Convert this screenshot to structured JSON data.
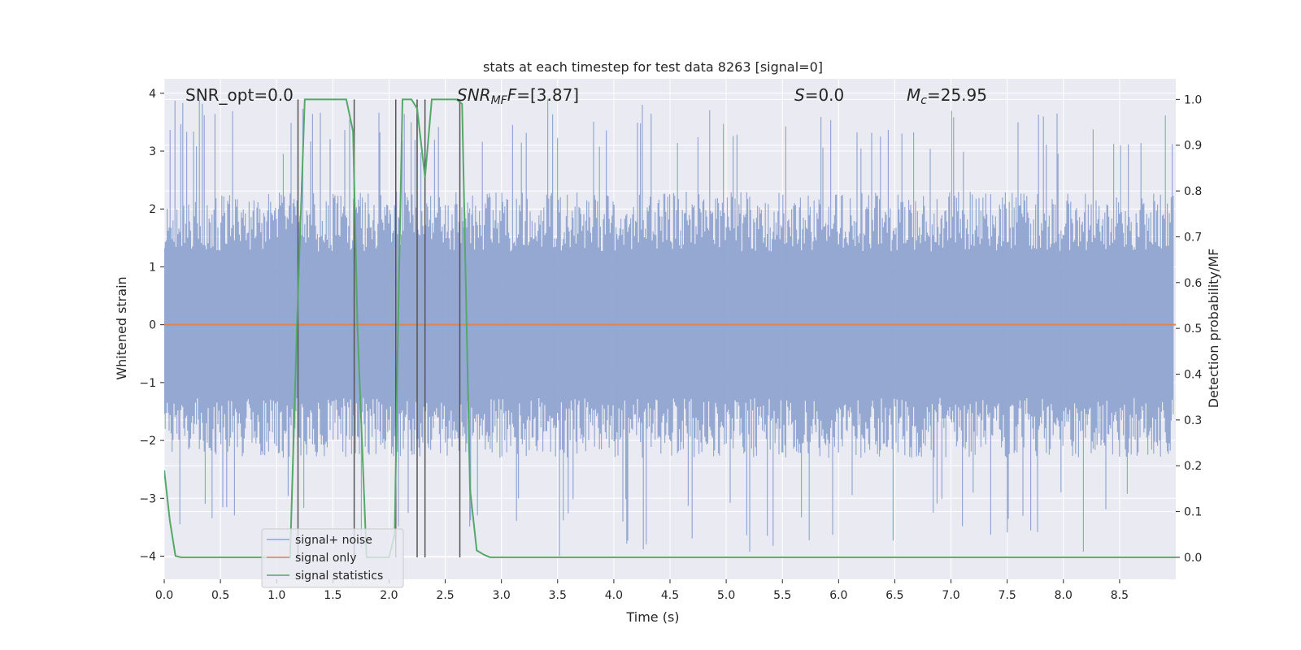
{
  "chart_data": {
    "type": "line",
    "title": "stats at each timestep for test data 8263 [signal=0]",
    "xlabel": "Time (s)",
    "ylabel": "Whitened strain",
    "y2label": "Detection probability/MF",
    "xlim": [
      0.0,
      9.0
    ],
    "ylim": [
      -4.4,
      4.25
    ],
    "y2lim": [
      -0.048,
      1.045
    ],
    "xticks": [
      "0.0",
      "0.5",
      "1.0",
      "1.5",
      "2.0",
      "2.5",
      "3.0",
      "3.5",
      "4.0",
      "4.5",
      "5.0",
      "5.5",
      "6.0",
      "6.5",
      "7.0",
      "7.5",
      "8.0",
      "8.5"
    ],
    "yticks": [
      "4",
      "3",
      "2",
      "1",
      "0",
      "−1",
      "−2",
      "−3",
      "−4"
    ],
    "y2ticks": [
      "1.0",
      "0.9",
      "0.8",
      "0.7",
      "0.6",
      "0.5",
      "0.4",
      "0.3",
      "0.2",
      "0.1",
      "0.0"
    ],
    "grid": true,
    "legend_position": "lower-left",
    "annotations": {
      "snr_opt": "SNR_opt=0.0",
      "snr_mf_main": "SNR",
      "snr_mf_sub": "MF",
      "snr_mf_value": "=[3.87]",
      "s_label": "S",
      "s_value": "=0.0",
      "mc_main": "M",
      "mc_sub": "c",
      "mc_value": "=25.95"
    },
    "series": [
      {
        "name": "signal+ noise",
        "color": "#8fa4cf",
        "envelope_min": -4.0,
        "envelope_max": 3.9,
        "typical_range": [
          -2.3,
          2.3
        ]
      },
      {
        "name": "signal only",
        "color": "#dd8452",
        "constant": 0.0
      },
      {
        "name": "signal statistics",
        "color": "#55a868",
        "axis": "right",
        "x": [
          0.0,
          0.05,
          0.1,
          0.15,
          1.12,
          1.18,
          1.25,
          1.3,
          1.62,
          1.68,
          1.72,
          1.8,
          2.0,
          2.05,
          2.08,
          2.12,
          2.2,
          2.25,
          2.32,
          2.38,
          2.45,
          2.6,
          2.65,
          2.72,
          2.78,
          2.85,
          2.9,
          9.0
        ],
        "y": [
          0.19,
          0.08,
          0.003,
          0.0,
          0.0,
          0.5,
          1.0,
          1.0,
          1.0,
          0.93,
          0.5,
          0.0,
          0.0,
          0.05,
          0.5,
          1.0,
          1.0,
          0.98,
          0.83,
          1.0,
          1.0,
          1.0,
          0.99,
          0.15,
          0.015,
          0.005,
          0.0,
          0.0
        ]
      }
    ],
    "vertical_markers": [
      1.19,
      1.69,
      2.06,
      2.25,
      2.32,
      2.63
    ]
  }
}
